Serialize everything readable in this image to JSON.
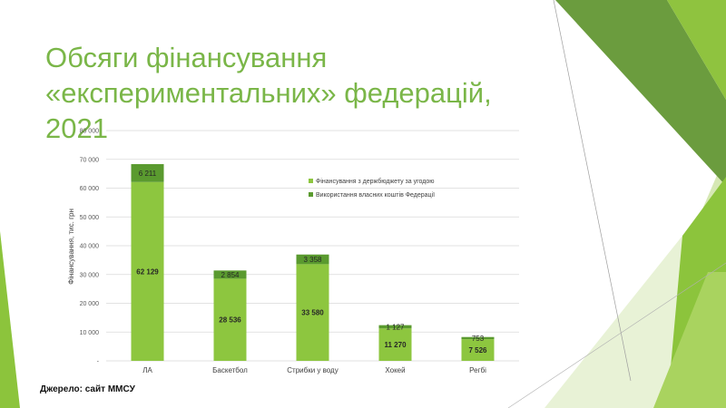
{
  "slide": {
    "title_lines": [
      "Обсяги фінансування",
      "«експериментальних» федерацій, 2021"
    ],
    "source": "Джерело: сайт ММСУ"
  },
  "colors": {
    "title": "#7ab648",
    "series_budget": "#8dc63f",
    "series_own": "#5a9a2f",
    "grid": "#d9d9d9",
    "deco_dark": "#6a9a3a",
    "deco_mid": "#8cc43c",
    "deco_light": "#cfe3a8"
  },
  "chart_data": {
    "type": "bar",
    "stacked": true,
    "categories": [
      "ЛА",
      "Баскетбол",
      "Стрибки у воду",
      "Хокей",
      "Регбі"
    ],
    "series": [
      {
        "name": "Фінансування з держбюджету за угодою",
        "values": [
          62129,
          28536,
          33580,
          11270,
          7526
        ]
      },
      {
        "name": "Використання власних коштів Федерації",
        "values": [
          6211,
          2854,
          3358,
          1127,
          753
        ]
      }
    ],
    "value_labels": [
      [
        "62 129",
        "28 536",
        "33 580",
        "11 270",
        "7 526"
      ],
      [
        "6 211",
        "2 854",
        "3 358",
        "1 127",
        "753"
      ]
    ],
    "ylabel": "Фінансування, тис. грн",
    "ylim": [
      0,
      80000
    ],
    "y_ticks": [
      0,
      10000,
      20000,
      30000,
      40000,
      50000,
      60000,
      70000,
      80000
    ],
    "y_tick_labels": [
      "-",
      "10 000",
      "20 000",
      "30 000",
      "40 000",
      "50 000",
      "60 000",
      "70 000",
      "80 000"
    ],
    "grid": true,
    "legend_position": "right-inside"
  }
}
